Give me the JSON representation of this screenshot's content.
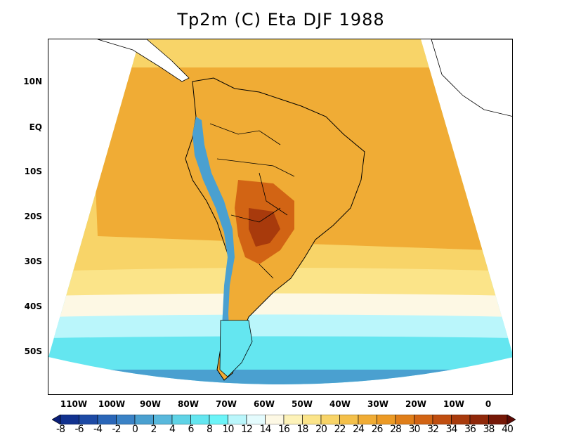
{
  "title": "Tp2m (C) Eta DJF 1988",
  "y_axis": {
    "labels": [
      "10N",
      "EQ",
      "10S",
      "20S",
      "30S",
      "40S",
      "50S"
    ],
    "values": [
      10,
      0,
      -10,
      -20,
      -30,
      -40,
      -50
    ]
  },
  "x_axis": {
    "labels": [
      "110W",
      "100W",
      "90W",
      "80W",
      "70W",
      "60W",
      "50W",
      "40W",
      "30W",
      "20W",
      "10W",
      "0"
    ],
    "values": [
      -110,
      -100,
      -90,
      -80,
      -70,
      -60,
      -50,
      -40,
      -30,
      -20,
      -10,
      0
    ]
  },
  "colorbar": {
    "labels": [
      "-8",
      "-6",
      "-4",
      "-2",
      "0",
      "2",
      "4",
      "6",
      "8",
      "10",
      "12",
      "14",
      "16",
      "18",
      "20",
      "22",
      "24",
      "26",
      "28",
      "30",
      "32",
      "34",
      "36",
      "38",
      "40"
    ],
    "colors": [
      "#0a1e78",
      "#12328f",
      "#1d4aa5",
      "#2a66b8",
      "#3a82c6",
      "#4aa0d0",
      "#58b8dc",
      "#5fd3e6",
      "#64e6f0",
      "#6cf4f8",
      "#baf6fb",
      "#e4fbfd",
      "#fdf8e4",
      "#fdf2b8",
      "#fbe489",
      "#f8d468",
      "#f4c04a",
      "#f0ac35",
      "#ec9a25",
      "#e07e19",
      "#d26414",
      "#c04e10",
      "#a83a0c",
      "#90280a",
      "#761807",
      "#5c0a05"
    ]
  },
  "color_scale": {
    "cool_low": "#1d4aa5",
    "cyan": "#64e6f0",
    "pale": "#fdf8e4",
    "warm": "#f0ac35",
    "hot": "#c04e10"
  }
}
